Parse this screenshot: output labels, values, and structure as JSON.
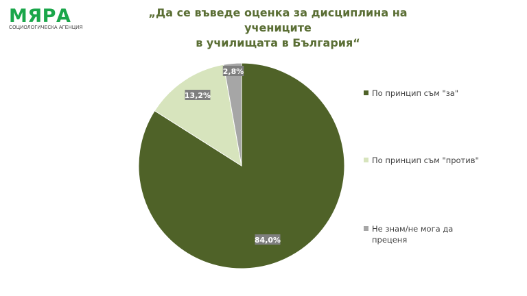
{
  "logo": {
    "name": "МЯРА",
    "subtitle": "СОЦИОЛОГИЧЕСКА АГЕНЦИЯ",
    "color": "#1aa64a"
  },
  "title": {
    "line1": "„Да се въведе оценка за дисциплина на учениците",
    "line2": "в училищата в България“"
  },
  "legend": [
    {
      "label": "По принцип съм \"за\"",
      "color": "#4f6228"
    },
    {
      "label": "По принцип съм \"против\"",
      "color": "#d7e4bd"
    },
    {
      "label": "Не знам/не мога да преценя",
      "color": "#a6a6a6"
    }
  ],
  "labels": {
    "za": "84,0%",
    "protiv": "13,2%",
    "neznam": "2,8%"
  },
  "chart_data": {
    "type": "pie",
    "title": "„Да се въведе оценка за дисциплина на учениците в училищата в България“",
    "categories": [
      "По принцип съм \"за\"",
      "По принцип съм \"против\"",
      "Не знам/не мога да преценя"
    ],
    "values": [
      84.0,
      13.2,
      2.8
    ],
    "unit": "%",
    "colors": [
      "#4f6228",
      "#d7e4bd",
      "#a6a6a6"
    ],
    "legend_position": "right",
    "start_angle": "12 o'clock, clockwise"
  }
}
